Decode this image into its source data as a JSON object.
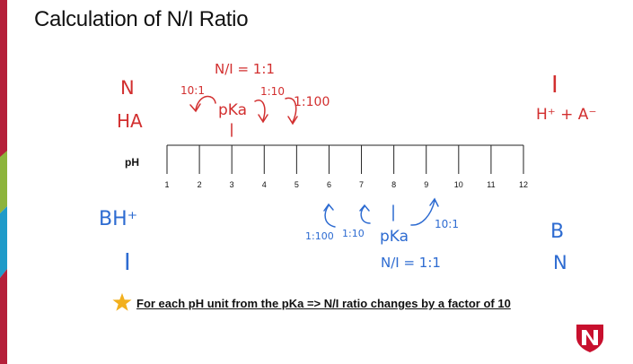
{
  "slide": {
    "title": "Calculation of N/I Ratio",
    "axis_label": "pH",
    "ticks": [
      "1",
      "2",
      "3",
      "4",
      "5",
      "6",
      "7",
      "8",
      "9",
      "10",
      "11",
      "12"
    ],
    "annotations_top": {
      "left_n": "N",
      "left_ha": "HA",
      "right_i": "I",
      "right_ha_ions": "H⁺ + A⁻",
      "ni_ratio": "N/I = 1:1",
      "pka": "pKa",
      "ratio_10_1": "10:1",
      "ratio_1_10": "1:10",
      "ratio_1_100": "1:100"
    },
    "annotations_bottom": {
      "left_bh": "BH⁺",
      "left_i": "I",
      "right_b": "B",
      "right_n": "N",
      "ratio_1_100": "1:100",
      "ratio_1_10": "1:10",
      "pka": "pKa",
      "ratio_10_1": "10:1",
      "ni_ratio": "N/I = 1:1"
    },
    "footer_note": "For each pH unit from the pKa => N/I ratio changes by a factor of 10",
    "colors": {
      "handwriting_red": "#d22f2f",
      "handwriting_blue": "#2d6bd1",
      "strip_red": "#b5203a",
      "strip_green": "#8db43c",
      "strip_blue": "#1f9bc9",
      "star": "#f2b01e"
    }
  }
}
